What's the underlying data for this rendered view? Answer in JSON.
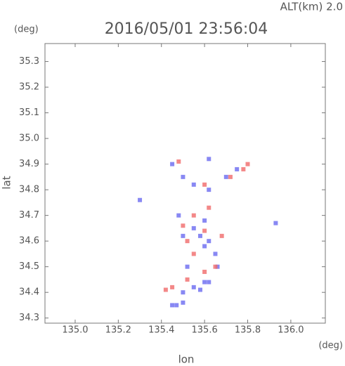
{
  "chart_data": {
    "type": "scatter",
    "title": "2016/05/01 23:56:04",
    "subtitle": "ALT(km) 2.0",
    "y_unit": "(deg)",
    "x_unit": "(deg)",
    "x_label": "lon",
    "y_label": "lat",
    "xlim": [
      134.86,
      136.16
    ],
    "ylim": [
      34.28,
      35.37
    ],
    "xticks": [
      {
        "value": 135,
        "label": "135.0"
      },
      135.2,
      135.4,
      135.6,
      135.8,
      {
        "value": 136,
        "label": "136.0"
      }
    ],
    "yticks": [
      34.3,
      34.4,
      34.5,
      34.6,
      34.7,
      34.8,
      34.9,
      {
        "value": 35,
        "label": "35.0"
      },
      35.1,
      35.2,
      35.3
    ],
    "series": [
      {
        "color": "#6a6af0",
        "x": [
          135.45,
          135.47,
          135.5,
          135.55,
          135.58,
          135.6,
          135.62,
          135.5,
          135.6,
          135.62,
          135.58,
          135.55,
          135.65,
          135.6,
          135.5,
          135.45,
          135.5,
          135.55,
          135.62,
          135.7,
          135.75,
          135.3,
          135.93,
          135.48,
          135.52,
          135.66,
          135.62
        ],
        "y": [
          34.35,
          34.35,
          34.36,
          34.42,
          34.41,
          34.44,
          34.44,
          34.4,
          34.58,
          34.6,
          34.62,
          34.65,
          34.55,
          34.68,
          34.62,
          34.9,
          34.85,
          34.82,
          34.8,
          34.85,
          34.88,
          34.76,
          34.67,
          34.7,
          34.5,
          34.5,
          34.92
        ]
      },
      {
        "color": "#f06a6a",
        "x": [
          135.45,
          135.52,
          135.6,
          135.65,
          135.55,
          135.52,
          135.6,
          135.55,
          135.5,
          135.62,
          135.72,
          135.8,
          135.78,
          135.48,
          135.6,
          135.42,
          135.68
        ],
        "y": [
          34.42,
          34.45,
          34.48,
          34.5,
          34.55,
          34.6,
          34.64,
          34.7,
          34.66,
          34.73,
          34.85,
          34.9,
          34.88,
          34.91,
          34.82,
          34.41,
          34.62
        ]
      }
    ]
  }
}
